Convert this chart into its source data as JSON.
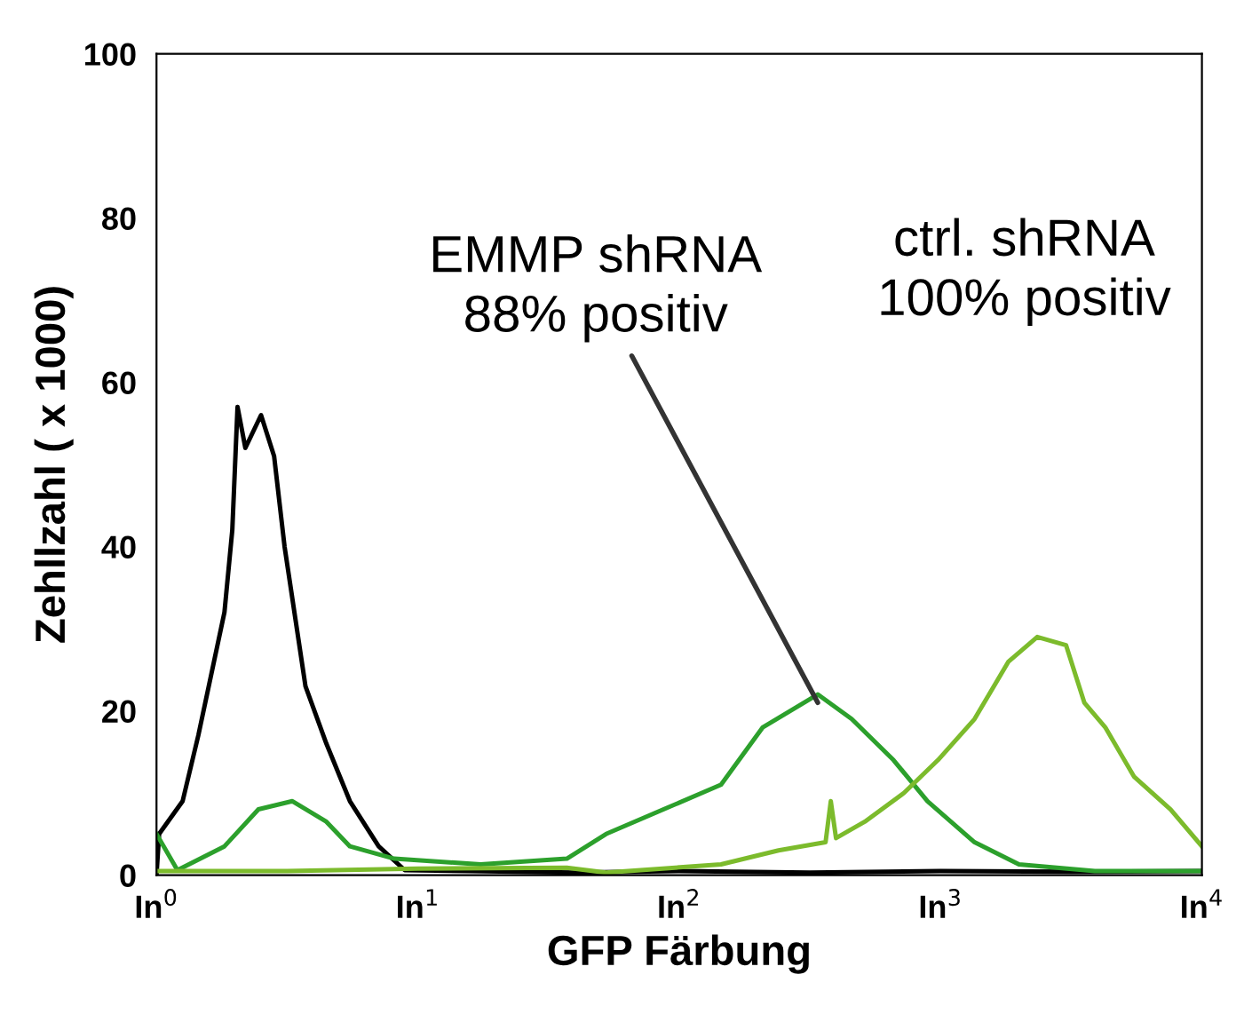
{
  "chart_data": {
    "type": "line",
    "xlabel": "GFP Färbung",
    "ylabel": "Zehllzahl ( x 1000)",
    "xlim": [
      0,
      4
    ],
    "ylim": [
      0,
      100
    ],
    "xticks": [
      {
        "value": 0,
        "label": "In$^{0}$"
      },
      {
        "value": 1,
        "label": "In$^{1}$"
      },
      {
        "value": 2,
        "label": "In$^{2}$"
      },
      {
        "value": 3,
        "label": "In$^{3}$"
      },
      {
        "value": 4,
        "label": "In$^{4}$"
      }
    ],
    "yticks": [
      0,
      20,
      40,
      60,
      80,
      100
    ],
    "grid": false,
    "legend": false,
    "marker": "none",
    "line_style": "solid",
    "series": [
      {
        "color": "#000000",
        "x": [
          0,
          0.01,
          0.1,
          0.16,
          0.26,
          0.29,
          0.31,
          0.34,
          0.4,
          0.45,
          0.49,
          0.57,
          0.65,
          0.74,
          0.85,
          0.95,
          1.2,
          1.6,
          2.0,
          2.5,
          3.0,
          3.5,
          4.0
        ],
        "values": [
          0,
          5,
          9,
          17,
          32,
          42,
          57,
          52,
          56,
          51,
          40,
          23,
          16,
          9,
          3.5,
          0.6,
          0.5,
          0.3,
          0.5,
          0.3,
          0.5,
          0.4,
          0.5
        ]
      },
      {
        "color": "#2ca02c",
        "x": [
          0,
          0.08,
          0.26,
          0.39,
          0.52,
          0.65,
          0.74,
          0.91,
          1.24,
          1.57,
          1.72,
          1.94,
          2.16,
          2.32,
          2.53,
          2.66,
          2.82,
          2.95,
          3.13,
          3.3,
          3.59,
          4.0
        ],
        "values": [
          5,
          0.6,
          3.5,
          8,
          9,
          6.5,
          3.5,
          2,
          1.3,
          2,
          5,
          8,
          11,
          18,
          22,
          19,
          14,
          9,
          4,
          1.3,
          0.5,
          0.5
        ]
      },
      {
        "color": "#7cbb2c",
        "x": [
          0,
          0.5,
          1.0,
          1.57,
          1.72,
          2.16,
          2.38,
          2.56,
          2.58,
          2.6,
          2.71,
          2.86,
          2.99,
          3.13,
          3.26,
          3.37,
          3.48,
          3.55,
          3.63,
          3.74,
          3.88,
          4.0
        ],
        "values": [
          0.5,
          0.5,
          0.8,
          0.9,
          0.3,
          1.3,
          3,
          4,
          9,
          4.5,
          6.5,
          10,
          14,
          19,
          26,
          29,
          28,
          21,
          18,
          12,
          8,
          3.5
        ]
      }
    ],
    "annotations": [
      {
        "text": "EMMP shRNA\n88% positiv",
        "x": 2.53,
        "y": 21
      },
      "ctrl. shRNA\n100% positiv"
    ]
  }
}
